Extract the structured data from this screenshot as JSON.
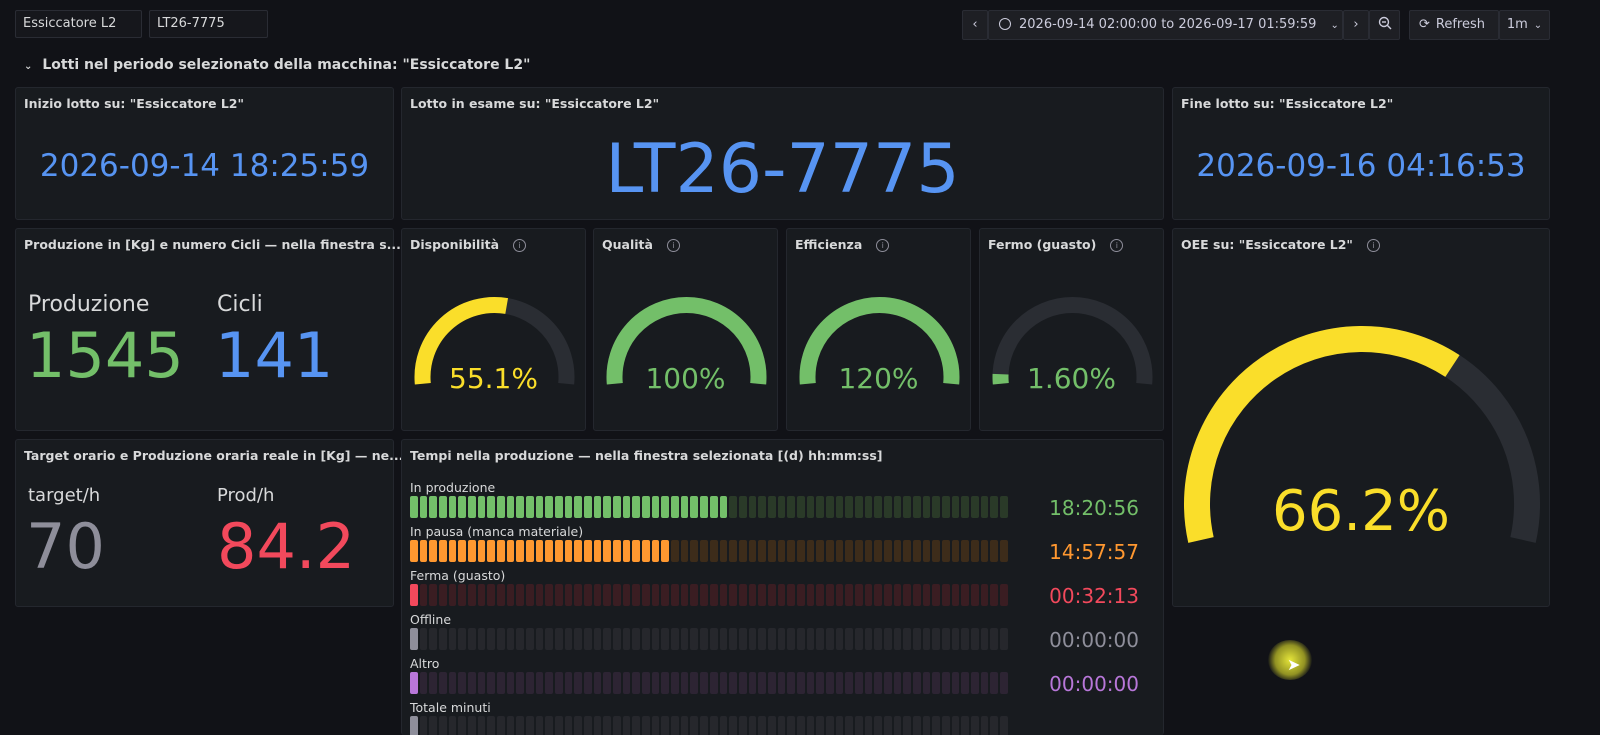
{
  "toolbar": {
    "var_machine": "Essiccatore L2",
    "var_lot": "LT26-7775",
    "time_range": "2026-09-14 02:00:00 to 2026-09-17 01:59:59",
    "refresh_label": "Refresh",
    "refresh_interval": "1m"
  },
  "row_title": "Lotti nel periodo selezionato della macchina: \"Essiccatore L2\"",
  "panels": {
    "start": {
      "title": "Inizio lotto su: \"Essiccatore L2\"",
      "value": "2026-09-14 18:25:59"
    },
    "lot": {
      "title": "Lotto in esame su: \"Essiccatore L2\"",
      "value": "LT26-7775"
    },
    "end": {
      "title": "Fine lotto su: \"Essiccatore L2\"",
      "value": "2026-09-16 04:16:53"
    },
    "production": {
      "title": "Produzione in [Kg] e numero Cicli — nella finestra s...",
      "prod_label": "Produzione",
      "prod_value": "1545",
      "cycles_label": "Cicli",
      "cycles_value": "141"
    },
    "target": {
      "title": "Target orario e Produzione oraria reale in [Kg] — ne...",
      "target_label": "target/h",
      "target_value": "70",
      "prod_label": "Prod/h",
      "prod_value": "84.2"
    },
    "gauges": [
      {
        "title": "Disponibilità",
        "text": "55.1%",
        "fraction": 0.551,
        "color": "#fade2a"
      },
      {
        "title": "Qualità",
        "text": "100%",
        "fraction": 1.0,
        "color": "#73bf69"
      },
      {
        "title": "Efficienza",
        "text": "120%",
        "fraction": 1.0,
        "color": "#73bf69"
      },
      {
        "title": "Fermo (guasto)",
        "text": "1.60%",
        "fraction": 0.04,
        "color": "#73bf69"
      }
    ],
    "oee": {
      "title": "OEE su: \"Essiccatore L2\"",
      "text": "66.2%",
      "fraction": 0.662,
      "color": "#fade2a"
    },
    "times": {
      "title": "Tempi nella produzione — nella finestra selezionata [(d) hh:mm:ss]",
      "rows": [
        {
          "label": "In produzione",
          "value": "18:20:56",
          "fraction": 0.54,
          "color": "#73bf69",
          "dim": "#2a3a28"
        },
        {
          "label": "In pausa (manca materiale)",
          "value": "14:57:57",
          "fraction": 0.44,
          "color": "#ff9830",
          "dim": "#3d2c1a"
        },
        {
          "label": "Ferma (guasto)",
          "value": "00:32:13",
          "fraction": 0.02,
          "color": "#f2495c",
          "dim": "#3a1d22"
        },
        {
          "label": "Offline",
          "value": "00:00:00",
          "fraction": 0.02,
          "color": "#8e8e9a",
          "dim": "#26272c"
        },
        {
          "label": "Altro",
          "value": "00:00:00",
          "fraction": 0.02,
          "color": "#b877d9",
          "dim": "#2d2433"
        },
        {
          "label": "Totale minuti",
          "value": "",
          "fraction": 0.02,
          "color": "#8e8e9a",
          "dim": "#26272c"
        }
      ]
    }
  }
}
